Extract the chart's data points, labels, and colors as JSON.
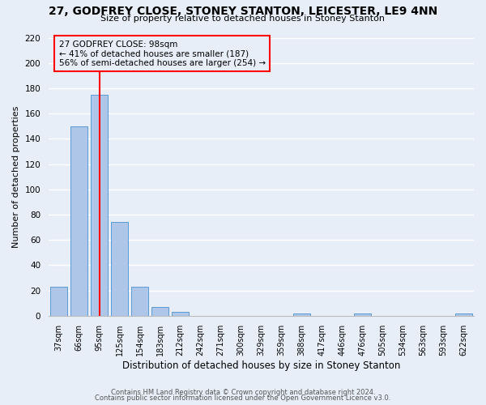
{
  "title": "27, GODFREY CLOSE, STONEY STANTON, LEICESTER, LE9 4NN",
  "subtitle": "Size of property relative to detached houses in Stoney Stanton",
  "xlabel": "Distribution of detached houses by size in Stoney Stanton",
  "ylabel": "Number of detached properties",
  "bin_labels": [
    "37sqm",
    "66sqm",
    "95sqm",
    "125sqm",
    "154sqm",
    "183sqm",
    "212sqm",
    "242sqm",
    "271sqm",
    "300sqm",
    "329sqm",
    "359sqm",
    "388sqm",
    "417sqm",
    "446sqm",
    "476sqm",
    "505sqm",
    "534sqm",
    "563sqm",
    "593sqm",
    "622sqm"
  ],
  "bar_values": [
    23,
    150,
    175,
    74,
    23,
    7,
    3,
    0,
    0,
    0,
    0,
    0,
    2,
    0,
    0,
    2,
    0,
    0,
    0,
    0,
    2
  ],
  "bar_color": "#aec6e8",
  "bar_edgecolor": "#5b9bd5",
  "vline_x_index": 2.03,
  "annotation_text": "27 GODFREY CLOSE: 98sqm\n← 41% of detached houses are smaller (187)\n56% of semi-detached houses are larger (254) →",
  "annotation_box_edgecolor": "red",
  "vline_color": "red",
  "ylim": [
    0,
    220
  ],
  "yticks": [
    0,
    20,
    40,
    60,
    80,
    100,
    120,
    140,
    160,
    180,
    200,
    220
  ],
  "footer_line1": "Contains HM Land Registry data © Crown copyright and database right 2024.",
  "footer_line2": "Contains public sector information licensed under the Open Government Licence v3.0.",
  "bg_color": "#e8eef8",
  "grid_color": "#ffffff",
  "title_fontsize": 10,
  "subtitle_fontsize": 8,
  "ylabel_fontsize": 8,
  "xlabel_fontsize": 8.5,
  "tick_fontsize": 7,
  "footer_fontsize": 6,
  "annot_fontsize": 7.5
}
